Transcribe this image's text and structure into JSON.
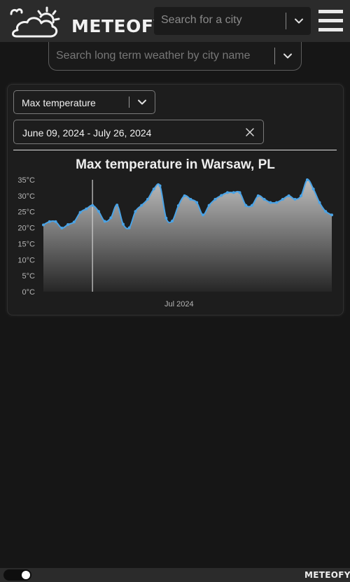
{
  "header": {
    "logo_text": "METEOFY",
    "city_search_placeholder": "Search for a city",
    "long_term_search_placeholder": "Search long term weather by city name"
  },
  "controls": {
    "metric_selected": "Max temperature",
    "date_range": "June 09, 2024 - July 26, 2024"
  },
  "footer": {
    "logo_text": "METEOFY",
    "theme_toggle_on": true
  },
  "colors": {
    "accent_line": "#4aa3e6",
    "background": "#161616",
    "panel": "#1d1d1d"
  },
  "chart_data": {
    "type": "area",
    "title": "Max temperature in Warsaw, PL",
    "xlabel": "",
    "ylabel": "",
    "x_tick_labels": [
      "Jul 2024"
    ],
    "y_tick_labels": [
      "0°C",
      "5°C",
      "10°C",
      "15°C",
      "20°C",
      "25°C",
      "30°C",
      "35°C"
    ],
    "ylim": [
      0,
      35
    ],
    "grid": false,
    "x": [
      "2024-06-09",
      "2024-06-10",
      "2024-06-11",
      "2024-06-12",
      "2024-06-13",
      "2024-06-14",
      "2024-06-15",
      "2024-06-16",
      "2024-06-17",
      "2024-06-18",
      "2024-06-19",
      "2024-06-20",
      "2024-06-21",
      "2024-06-22",
      "2024-06-23",
      "2024-06-24",
      "2024-06-25",
      "2024-06-26",
      "2024-06-27",
      "2024-06-28",
      "2024-06-29",
      "2024-06-30",
      "2024-07-01",
      "2024-07-02",
      "2024-07-03",
      "2024-07-04",
      "2024-07-05",
      "2024-07-06",
      "2024-07-07",
      "2024-07-08",
      "2024-07-09",
      "2024-07-10",
      "2024-07-11",
      "2024-07-12",
      "2024-07-13",
      "2024-07-14",
      "2024-07-15",
      "2024-07-16",
      "2024-07-17",
      "2024-07-18",
      "2024-07-19",
      "2024-07-20",
      "2024-07-21",
      "2024-07-22",
      "2024-07-23",
      "2024-07-24",
      "2024-07-25",
      "2024-07-26"
    ],
    "series": [
      {
        "values": [
          20.9,
          21.9,
          21.9,
          19.9,
          21.0,
          21.8,
          24.8,
          25.9,
          27.0,
          25.1,
          22.0,
          23.1,
          27.1,
          21.1,
          20.0,
          25.1,
          27.0,
          28.9,
          32.1,
          33.1,
          23.0,
          22.1,
          26.9,
          30.0,
          28.9,
          27.9,
          24.0,
          27.0,
          28.9,
          30.1,
          31.0,
          31.0,
          31.0,
          27.0,
          27.0,
          30.0,
          28.9,
          27.9,
          27.9,
          28.9,
          30.0,
          28.9,
          30.0,
          35.0,
          32.1,
          27.9,
          25.1,
          24.0
        ]
      }
    ],
    "cursor_date": "2024-06-17"
  }
}
